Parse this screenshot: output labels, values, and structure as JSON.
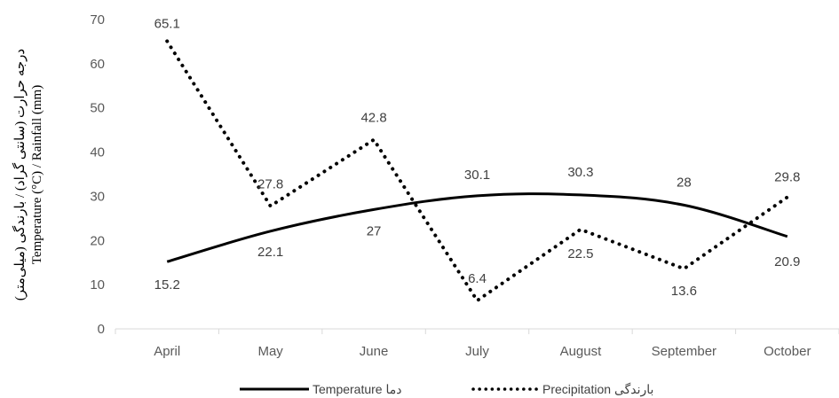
{
  "chart_data": {
    "type": "line",
    "categories": [
      "April",
      "May",
      "June",
      "July",
      "August",
      "September",
      "October"
    ],
    "series": [
      {
        "name": "Temperature دما",
        "style": "solid",
        "color": "#000000",
        "values": [
          15.2,
          22.1,
          27,
          30.1,
          30.3,
          28,
          20.9
        ]
      },
      {
        "name": "Precipitation بارندگی",
        "style": "dotted",
        "color": "#000000",
        "values": [
          65.1,
          27.8,
          42.8,
          6.4,
          22.5,
          13.6,
          29.8
        ]
      }
    ],
    "ylabel_line1": "درجه حرارت (سانتی گراد) / بارندگی (میلی‌متر)",
    "ylabel_line2": "Temperature (°C) / Rainfall (mm)",
    "ylim": [
      0,
      70
    ],
    "yticks": [
      0,
      10,
      20,
      30,
      40,
      50,
      60,
      70
    ],
    "grid": false,
    "legend_position": "bottom"
  }
}
